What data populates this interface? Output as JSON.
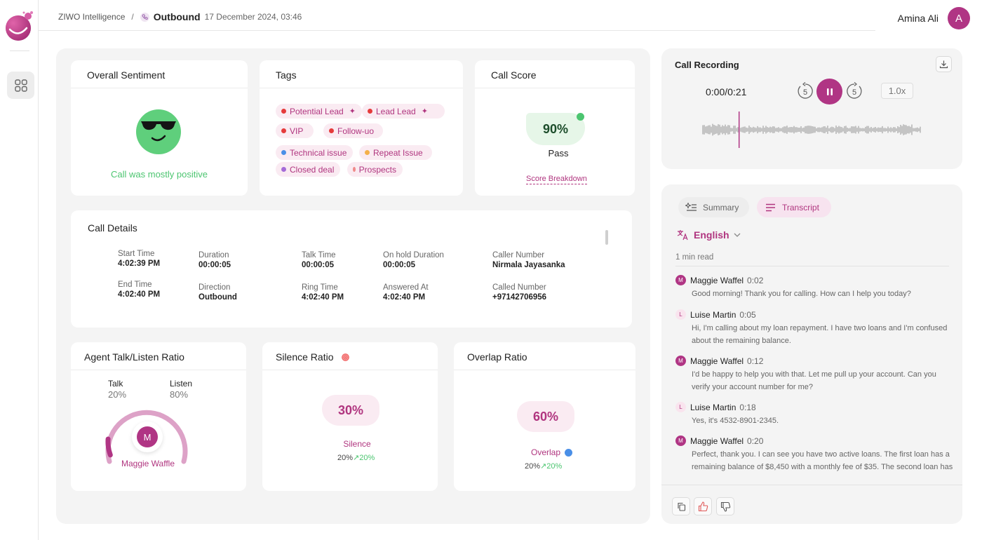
{
  "header": {
    "breadcrumb_root": "ZIWO Intelligence",
    "separator": "/",
    "call_type": "Outbound",
    "call_date": "17 December 2024, 03:46",
    "user_name": "Amina Ali",
    "user_initial": "A"
  },
  "sentiment": {
    "title": "Overall Sentiment",
    "summary": "Call was mostly positive"
  },
  "tags": {
    "title": "Tags",
    "items": [
      {
        "label": "Potential Lead",
        "color": "#e53b3b",
        "ai": true
      },
      {
        "label": "Lead Lead",
        "color": "#e53b3b",
        "ai": true
      },
      {
        "label": "VIP",
        "color": "#e53b3b",
        "ai": false
      },
      {
        "label": "Follow-uo",
        "color": "#e53b3b",
        "ai": false
      },
      {
        "label": "Technical issue",
        "color": "#4a8fe7",
        "ai": false
      },
      {
        "label": "Repeat Issue",
        "color": "#f4b04a",
        "ai": false
      },
      {
        "label": "Closed deal",
        "color": "#a56bd8",
        "ai": false
      },
      {
        "label": "Prospects",
        "color": "#f08a8a",
        "ai": false
      }
    ]
  },
  "call_score": {
    "title": "Call Score",
    "value": "90%",
    "result": "Pass",
    "link": "Score Breakdown"
  },
  "call_details": {
    "title": "Call Details",
    "fields": [
      {
        "label": "Start Time",
        "value": "4:02:39 PM"
      },
      {
        "label": "Duration",
        "value": "00:00:05"
      },
      {
        "label": "Talk Time",
        "value": "00:00:05"
      },
      {
        "label": "On hold Duration",
        "value": "00:00:05"
      },
      {
        "label": "Caller Number",
        "value": "Nirmala Jayasanka"
      },
      {
        "label": "End Time",
        "value": "4:02:40 PM"
      },
      {
        "label": "Direction",
        "value": "Outbound"
      },
      {
        "label": "Ring Time",
        "value": "4:02:40 PM"
      },
      {
        "label": "Answered At",
        "value": "4:02:40 PM"
      },
      {
        "label": "Called Number",
        "value": "+97142706956"
      }
    ]
  },
  "talk_ratio": {
    "title": "Agent Talk/Listen Ratio",
    "talk_label": "Talk",
    "talk_value": "20%",
    "talk_fraction": 0.2,
    "listen_label": "Listen",
    "listen_value": "80%",
    "agent_initial": "M",
    "agent_name": "Maggie Waffle"
  },
  "silence_ratio": {
    "title": "Silence Ratio",
    "value": "30%",
    "label": "Silence",
    "current": "20%",
    "change": "20%"
  },
  "overlap_ratio": {
    "title": "Overlap Ratio",
    "value": "60%",
    "label": "Overlap",
    "current": "20%",
    "change": "20%"
  },
  "recording": {
    "title": "Call Recording",
    "time": "0:00/0:21",
    "skip_back": "5",
    "skip_forward": "5",
    "speed": "1.0x",
    "progress": 0.17
  },
  "transcript": {
    "tab_summary": "Summary",
    "tab_transcript": "Transcript",
    "language": "English",
    "read_time": "1 min read",
    "messages": [
      {
        "initial": "M",
        "speaker": "Maggie Waffel",
        "time": "0:02",
        "text": "Good morning! Thank you for calling. How can I help you today?"
      },
      {
        "initial": "L",
        "speaker": "Luise Martin",
        "time": "0:05",
        "text": "Hi, I'm calling about my loan repayment. I have two loans and I'm confused about the remaining balance."
      },
      {
        "initial": "M",
        "speaker": "Maggie Waffel",
        "time": "0:12",
        "text": "I'd be happy to help you with that. Let me pull up your account. Can you verify your account number for me?"
      },
      {
        "initial": "L",
        "speaker": "Luise Martin",
        "time": "0:18",
        "text": "Yes, it's 4532-8901-2345."
      },
      {
        "initial": "M",
        "speaker": "Maggie Waffel",
        "time": "0:20",
        "text": "Perfect, thank you. I can see you have two active loans. The first loan has a remaining balance of $8,450 with a monthly fee of $35. The second loan has"
      }
    ]
  },
  "colors": {
    "accent": "#b03584",
    "positive": "#4cc570"
  }
}
